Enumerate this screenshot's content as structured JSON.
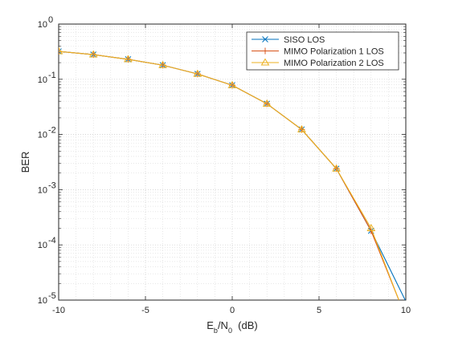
{
  "chart_data": {
    "type": "line",
    "xlabel": "E_b/N_0  (dB)",
    "ylabel": "BER",
    "xlim": [
      -10,
      10
    ],
    "ylim": [
      1e-05,
      1
    ],
    "yscale": "log",
    "grid": true,
    "minor_grid": true,
    "legend_position": "top-right",
    "x_ticks": [
      -10,
      -5,
      0,
      5,
      10
    ],
    "x_tick_labels": [
      "-10",
      "-5",
      "0",
      "5",
      "10"
    ],
    "y_ticks": [
      1e-05,
      0.0001,
      0.001,
      0.01,
      0.1,
      1
    ],
    "y_tick_labels": [
      {
        "base": "10",
        "exp": "-5"
      },
      {
        "base": "10",
        "exp": "-4"
      },
      {
        "base": "10",
        "exp": "-3"
      },
      {
        "base": "10",
        "exp": "-2"
      },
      {
        "base": "10",
        "exp": "-1"
      },
      {
        "base": "10",
        "exp": "0"
      }
    ],
    "series": [
      {
        "name": "SISO LOS",
        "color": "#0072BD",
        "marker": "x",
        "x": [
          -10,
          -8,
          -6,
          -4,
          -2,
          0,
          2,
          4,
          6,
          8,
          10
        ],
        "y": [
          0.32,
          0.28,
          0.23,
          0.18,
          0.125,
          0.078,
          0.036,
          0.0123,
          0.0024,
          0.00018,
          9.5e-06
        ]
      },
      {
        "name": "MIMO Polarization 1 LOS",
        "color": "#D95319",
        "marker": "+",
        "x": [
          -10,
          -8,
          -6,
          -4,
          -2,
          0,
          2,
          4,
          6,
          8,
          9.6
        ],
        "y": [
          0.32,
          0.28,
          0.23,
          0.18,
          0.125,
          0.078,
          0.036,
          0.0123,
          0.0024,
          0.00018,
          1e-05
        ]
      },
      {
        "name": "MIMO Polarization 2 LOS",
        "color": "#EDB120",
        "marker": "triangle",
        "x": [
          -10,
          -8,
          -6,
          -4,
          -2,
          0,
          2,
          4,
          6,
          8,
          9.6
        ],
        "y": [
          0.32,
          0.28,
          0.23,
          0.18,
          0.125,
          0.078,
          0.036,
          0.0123,
          0.0024,
          0.0002,
          1e-05
        ]
      }
    ],
    "marker_points": 10
  }
}
